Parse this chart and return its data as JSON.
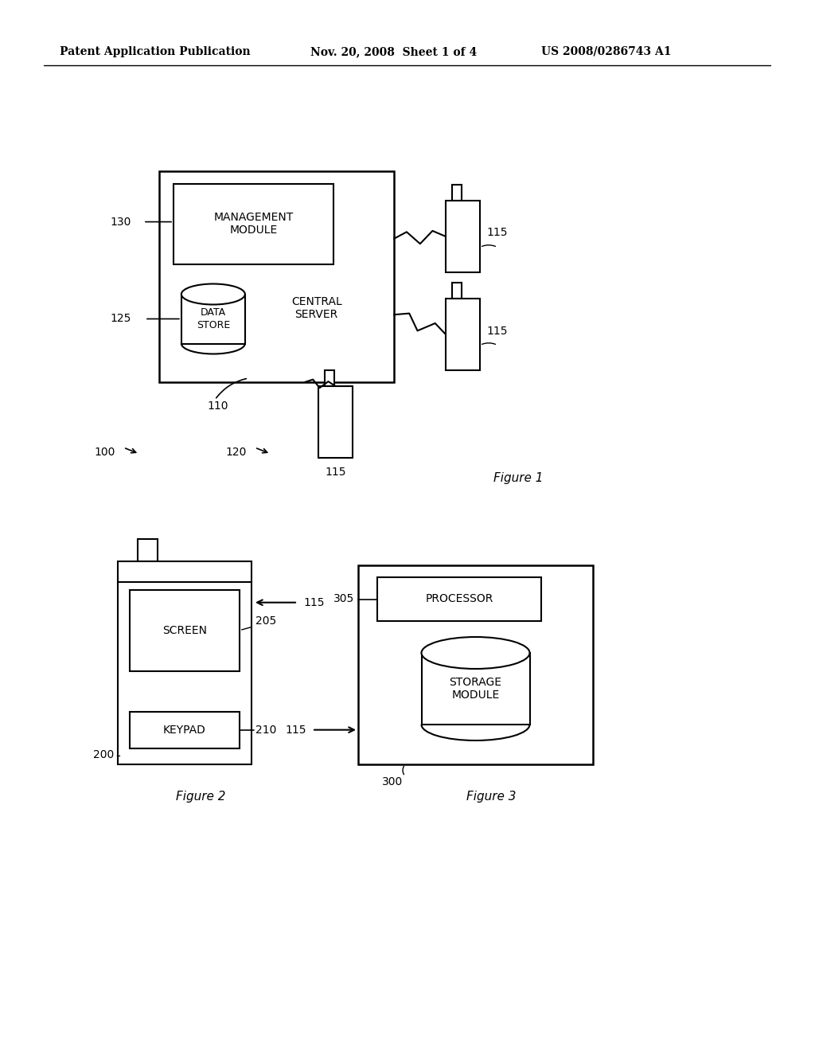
{
  "bg_color": "#ffffff",
  "header_left": "Patent Application Publication",
  "header_mid": "Nov. 20, 2008  Sheet 1 of 4",
  "header_right": "US 2008/0286743 A1",
  "fig1_label": "Figure 1",
  "fig2_label": "Figure 2",
  "fig3_label": "Figure 3",
  "lw_main": 1.8,
  "lw_inner": 1.5,
  "fs_label": 10,
  "fs_fig": 11
}
